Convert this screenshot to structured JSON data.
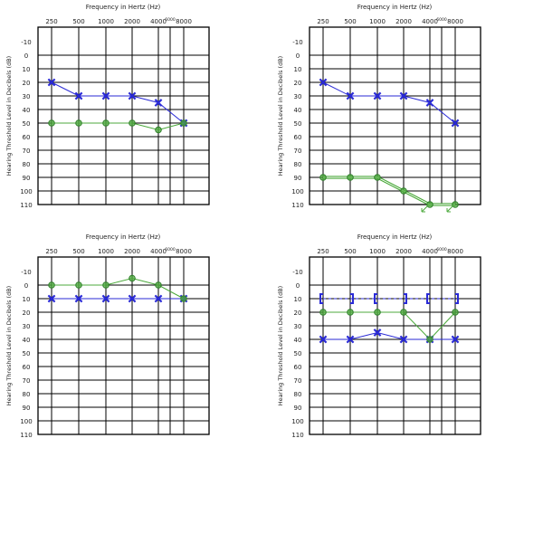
{
  "chart_data": [
    {
      "type": "line",
      "title": "Frequency in Hertz (Hz)",
      "ylabel": "Hearing Threshold Level in Decibels (dB)",
      "x_ticks": [
        "250",
        "500",
        "1000",
        "2000",
        "4000",
        "8000"
      ],
      "x_extra_label": "6000",
      "y_ticks": [
        "-10",
        "0",
        "10",
        "20",
        "30",
        "40",
        "50",
        "60",
        "70",
        "80",
        "90",
        "100",
        "110"
      ],
      "ylim": [
        -10,
        110
      ],
      "series": [
        {
          "marker": "x",
          "color": "#2a2ad6",
          "points": [
            [
              "250",
              20
            ],
            [
              "500",
              30
            ],
            [
              "1000",
              30
            ],
            [
              "2000",
              30
            ],
            [
              "4000",
              35
            ],
            [
              "8000",
              50
            ]
          ]
        },
        {
          "marker": "o",
          "color": "#4caa3c",
          "points": [
            [
              "250",
              50
            ],
            [
              "500",
              50
            ],
            [
              "1000",
              50
            ],
            [
              "2000",
              50
            ],
            [
              "4000",
              55
            ],
            [
              "8000",
              50
            ]
          ]
        }
      ],
      "brackets": []
    },
    {
      "type": "line",
      "title": "Frequency in Hertz (Hz)",
      "ylabel": "Hearing Threshold Level in Decibels (dB)",
      "x_ticks": [
        "250",
        "500",
        "1000",
        "2000",
        "4000",
        "8000"
      ],
      "x_extra_label": "6000",
      "y_ticks": [
        "-10",
        "0",
        "10",
        "20",
        "30",
        "40",
        "50",
        "60",
        "70",
        "80",
        "90",
        "100",
        "110"
      ],
      "ylim": [
        -10,
        110
      ],
      "series": [
        {
          "marker": "x",
          "color": "#2a2ad6",
          "points": [
            [
              "250",
              20
            ],
            [
              "500",
              30
            ],
            [
              "1000",
              30
            ],
            [
              "2000",
              30
            ],
            [
              "4000",
              35
            ],
            [
              "8000",
              50
            ]
          ]
        },
        {
          "marker": "o",
          "color": "#4caa3c",
          "double_line": true,
          "points": [
            [
              "250",
              90
            ],
            [
              "500",
              90
            ],
            [
              "1000",
              90
            ],
            [
              "2000",
              100
            ],
            [
              "4000",
              110
            ],
            [
              "8000",
              110
            ]
          ],
          "no_response_arrows": [
            "4000",
            "8000"
          ]
        }
      ],
      "brackets": []
    },
    {
      "type": "line",
      "title": "Frequency in Hertz (Hz)",
      "ylabel": "Hearing Threshold Level in Decibels (dB)",
      "x_ticks": [
        "250",
        "500",
        "1000",
        "2000",
        "4000",
        "8000"
      ],
      "x_extra_label": "6000",
      "y_ticks": [
        "-10",
        "0",
        "10",
        "20",
        "30",
        "40",
        "50",
        "60",
        "70",
        "80",
        "90",
        "100",
        "110"
      ],
      "ylim": [
        -10,
        110
      ],
      "series": [
        {
          "marker": "x",
          "color": "#2a2ad6",
          "points": [
            [
              "250",
              10
            ],
            [
              "500",
              10
            ],
            [
              "1000",
              10
            ],
            [
              "2000",
              10
            ],
            [
              "4000",
              10
            ],
            [
              "8000",
              10
            ]
          ]
        },
        {
          "marker": "o",
          "color": "#4caa3c",
          "points": [
            [
              "250",
              0
            ],
            [
              "500",
              0
            ],
            [
              "1000",
              0
            ],
            [
              "2000",
              -5
            ],
            [
              "4000",
              0
            ],
            [
              "8000",
              10
            ]
          ]
        }
      ],
      "brackets": []
    },
    {
      "type": "line",
      "title": "Frequency in Hertz (Hz)",
      "ylabel": "Hearing Threshold Level in Decibels (dB)",
      "x_ticks": [
        "250",
        "500",
        "1000",
        "2000",
        "4000",
        "8000"
      ],
      "x_extra_label": "6000",
      "y_ticks": [
        "-10",
        "0",
        "10",
        "20",
        "30",
        "40",
        "50",
        "60",
        "70",
        "80",
        "90",
        "100",
        "110"
      ],
      "ylim": [
        -10,
        110
      ],
      "series": [
        {
          "marker": "x",
          "color": "#2a2ad6",
          "points": [
            [
              "250",
              40
            ],
            [
              "500",
              40
            ],
            [
              "1000",
              35
            ],
            [
              "2000",
              40
            ],
            [
              "4000",
              40
            ],
            [
              "8000",
              40
            ]
          ]
        },
        {
          "marker": "o",
          "color": "#4caa3c",
          "points": [
            [
              "250",
              20
            ],
            [
              "500",
              20
            ],
            [
              "1000",
              20
            ],
            [
              "2000",
              20
            ],
            [
              "4000",
              40
            ],
            [
              "8000",
              20
            ]
          ]
        }
      ],
      "brackets": [
        {
          "color": "#2a2ad6",
          "dashed": true,
          "points": [
            [
              "250",
              10
            ],
            [
              "500",
              10
            ],
            [
              "1000",
              10
            ],
            [
              "2000",
              10
            ],
            [
              "4000",
              10
            ],
            [
              "8000",
              10
            ]
          ]
        }
      ]
    }
  ]
}
